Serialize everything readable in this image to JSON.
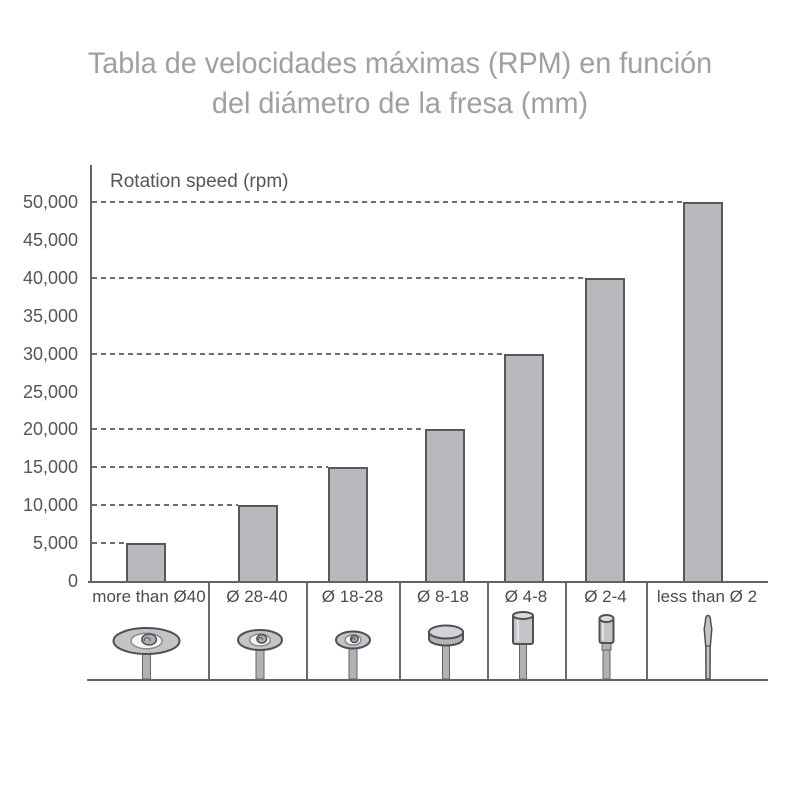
{
  "title": {
    "line1": "Tabla de velocidades máximas (RPM) en función",
    "line2": "del diámetro de la fresa (mm)"
  },
  "chart_data": {
    "type": "bar",
    "title": "Tabla de velocidades máximas (RPM) en función del diámetro de la fresa (mm)",
    "axis_label": "Rotation speed (rpm)",
    "xlabel": "",
    "ylabel": "Rotation speed (rpm)",
    "categories": [
      "more than Ø40",
      "Ø 28-40",
      "Ø 18-28",
      "Ø 8-18",
      "Ø 4-8",
      "Ø 2-4",
      "less than Ø 2"
    ],
    "values": [
      5000,
      10000,
      15000,
      20000,
      30000,
      40000,
      50000
    ],
    "y_tick_labels": [
      "0",
      "5,000",
      "10,000",
      "15,000",
      "20,000",
      "25,000",
      "30,000",
      "35,000",
      "40,000",
      "45,000",
      "50,000"
    ],
    "y_tick_values": [
      0,
      5000,
      10000,
      15000,
      20000,
      25000,
      30000,
      35000,
      40000,
      45000,
      50000
    ],
    "ylim": [
      0,
      50000
    ],
    "grid": "dashed horizontal leader line from y-axis to each bar at its value",
    "legend_position": "none",
    "tool_icons": [
      "large-wheel-bur-icon",
      "medium-wheel-bur-icon",
      "small-wheel-bur-icon",
      "flat-disc-bur-icon",
      "large-cylinder-bur-icon",
      "small-cylinder-bur-icon",
      "pointed-taper-bur-icon"
    ]
  },
  "colors": {
    "title_text": "#a0a09c",
    "axis_text": "#55555a",
    "category_text": "#4b4b50",
    "bar_fill": "#b9b9bd",
    "bar_border": "#58585c",
    "dash_line": "#6e6e72",
    "axis_line": "#626266",
    "tool_fill": "#c4c4c8",
    "tool_stroke": "#4f4f54"
  }
}
